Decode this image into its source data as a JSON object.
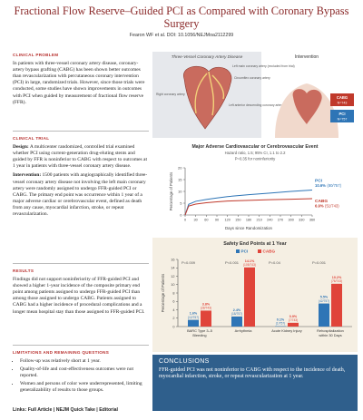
{
  "header": {
    "title": "Fractional Flow Reserve–Guided PCI as Compared with Coronary Bypass Surgery",
    "byline": "Fearon WF et al. DOI: 10.1056/NEJMoa2112299"
  },
  "clinical_problem": {
    "heading": "Clinical Problem",
    "text": "In patients with three-vessel coronary artery disease, coronary-artery bypass grafting (CABG) has been shown better outcomes than revascularization with percutaneous coronary intervention (PCI) in large, randomized trials. However, since those trials were conducted, some studies have shown improvements in outcomes with PCI when guided by measurement of fractional flow reserve (FFR)."
  },
  "clinical_trial": {
    "heading": "Clinical Trial",
    "design_label": "Design:",
    "design_text": "A multicenter randomized, controlled trial examined whether PCI using current-generation drug-eluting stents and guided by FFR is noninferior to CABG with respect to outcomes at 1 year in patients with three-vessel coronary artery disease.",
    "intervention_label": "Intervention:",
    "intervention_text": "1500 patients with angiographically identified three-vessel coronary artery disease not involving the left main coronary artery were randomly assigned to undergo FFR-guided PCI or CABG. The primary end point was occurrence within 1 year of a major adverse cardiac or cerebrovascular event, defined as death from any cause, myocardial infarction, stroke, or repeat revascularization."
  },
  "results": {
    "heading": "Results",
    "text": "Findings did not support noninferiority of FFR-guided PCI and showed a higher 1-year incidence of the composite primary end point among patients assigned to undergo FFR-guided PCI than among those assigned to undergo CABG. Patients assigned to CABG had a higher incidence of procedural complications and a longer mean hospital stay than those assigned to FFR-guided PCI."
  },
  "limitations": {
    "heading": "Limitations and Remaining Questions",
    "bullets": [
      "Follow-up was relatively short at 1 year.",
      "Quality-of-life and cost-effectiveness outcomes were not reported.",
      "Women and persons of color were underrepresented, limiting generalizability of results to those groups."
    ]
  },
  "links": {
    "label": "Links:",
    "items": [
      "Full Article",
      "NEJM Quick Take",
      "Editorial"
    ]
  },
  "illustration": {
    "left_title": "Three-Vessel Coronary Artery Disease",
    "labels": [
      "Left main coronary artery (excluded from trial)",
      "Circumflex coronary artery",
      "Right coronary artery",
      "Left anterior descending coronary artery"
    ],
    "right_title": "Intervention",
    "arms": [
      {
        "name": "CABG",
        "n": "N=743"
      },
      {
        "name": "PCI",
        "n": "N=757"
      }
    ]
  },
  "km_chart": {
    "type": "line",
    "title": "Major Adverse Cardiovascular or Cerebrovascular Event",
    "hazard_ratio": "Hazard ratio, 1.5; 95% CI, 1.1 to 2.2",
    "p_value": "P=0.35 for noninferiority",
    "ylabel": "Percentage of Patients",
    "xlabel": "Days since Randomization",
    "xlim": [
      0,
      360
    ],
    "xticks": [
      0,
      30,
      60,
      90,
      120,
      150,
      180,
      210,
      240,
      270,
      300,
      330,
      360
    ],
    "ylim": [
      0,
      20
    ],
    "yticks": [
      0,
      5,
      10,
      15,
      20
    ],
    "series": [
      {
        "name": "PCI",
        "color": "#2e75b6",
        "x": [
          0,
          10,
          30,
          60,
          90,
          120,
          180,
          240,
          300,
          360
        ],
        "values": [
          0,
          4.5,
          5.8,
          6.6,
          7.2,
          7.8,
          8.6,
          9.3,
          10.0,
          10.6
        ],
        "end_label": "10.6%",
        "count": "(80/757)"
      },
      {
        "name": "CABG",
        "color": "#c0392b",
        "x": [
          0,
          10,
          30,
          60,
          90,
          120,
          180,
          240,
          300,
          360
        ],
        "values": [
          0,
          3.8,
          4.6,
          5.2,
          5.6,
          5.9,
          6.2,
          6.5,
          6.7,
          6.9
        ],
        "end_label": "6.9%",
        "count": "(51/743)"
      }
    ]
  },
  "bar_chart": {
    "type": "bar",
    "title": "Safety End Points at 1 Year",
    "ylabel": "Percentage of Patients",
    "ylim": [
      0,
      16
    ],
    "yticks": [
      0,
      2,
      4,
      6,
      8,
      10,
      12,
      14,
      16
    ],
    "categories": [
      "BARC Type 3–5 Bleeding",
      "Arrhythmia",
      "Acute Kidney Injury",
      "Rehospitalization within 30 Days"
    ],
    "p_values": [
      "P=0.009",
      "P<0.001",
      "P=0.04",
      "P=0.001"
    ],
    "series": [
      {
        "name": "PCI",
        "color": "#2e75b6",
        "values": [
          1.6,
          2.4,
          0.1,
          5.5
        ],
        "value_labels": [
          "1.6%",
          "2.4%",
          "0.1%",
          "5.5%"
        ],
        "counts": [
          "(12/757)",
          "(18/757)",
          "(1/757)",
          "(42/757)"
        ]
      },
      {
        "name": "CABG",
        "color": "#e0443a",
        "values": [
          3.8,
          14.1,
          0.9,
          10.2
        ],
        "value_labels": [
          "3.8%",
          "14.1%",
          "0.9%",
          "10.2%"
        ],
        "counts": [
          "(28/743)",
          "(105/743)",
          "(7/743)",
          "(76/743)"
        ]
      }
    ]
  },
  "conclusions": {
    "heading": "CONCLUSIONS",
    "text": "FFR-guided PCI was not noninferior to CABG with respect to the incidence of death, myocardial infarction, stroke, or repeat revascularization at 1 year."
  }
}
